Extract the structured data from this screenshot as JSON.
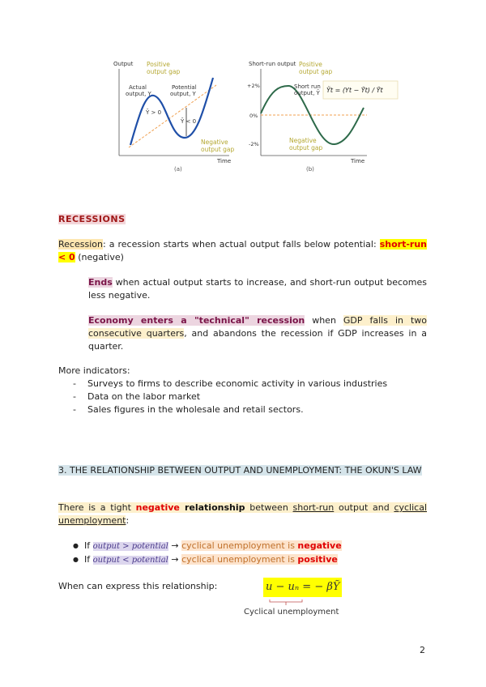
{
  "figure": {
    "left": {
      "y_axis": "Output",
      "x_axis": "Time",
      "caption": "(a)",
      "label_positive": [
        "Positive",
        "output gap"
      ],
      "label_actual": [
        "Actual",
        "output, Y"
      ],
      "label_potential": [
        "Potential",
        "output, Y"
      ],
      "label_gt": "Ỹ > 0",
      "label_lt": "Ỹ < 0",
      "label_negative": [
        "Negative",
        "output gap"
      ]
    },
    "right": {
      "y_axis": "Short-run output",
      "x_axis": "Time",
      "caption": "(b)",
      "ticks": [
        "+2%",
        "0%",
        "-2%"
      ],
      "label_positive": [
        "Positive",
        "output gap"
      ],
      "label_shortrun": [
        "Short run",
        "output, Ỹ"
      ],
      "formula": "Ỹt = (Yt − Ȳt) / Ȳt",
      "label_negative": [
        "Negative",
        "output gap"
      ]
    },
    "colors": {
      "curve_left": "#1f4fa8",
      "curve_right": "#2e6a4a",
      "dashed": "#f0a050",
      "annotation": "#b5a832"
    }
  },
  "recessions": {
    "heading": "RECESSIONS",
    "term": "Recession",
    "definition": ":   a recession starts when actual output falls below potential:",
    "condition": "short-run < 0",
    "condition_note": " (negative)",
    "ends_term": "Ends",
    "ends_text": " when actual output starts to increase, and short-run output becomes less negative.",
    "technical_term": "Economy enters a \"technical\" recession",
    "technical_when": " when ",
    "technical_gdp": "GDP falls in two consecutive quarters",
    "technical_rest": ", and abandons the recession if GDP increases in a quarter.",
    "more_indicators": "More indicators:",
    "indicators": [
      "Surveys to firms to describe economic activity in various industries",
      "Data on the labor market",
      "Sales figures in the wholesale and retail sectors."
    ]
  },
  "okun": {
    "heading": "3. THE RELATIONSHIP BETWEEN OUTPUT AND UNEMPLOYMENT: THE OKUN'S LAW",
    "intro_a": "There is a tight ",
    "intro_negative": "negative",
    "intro_relationship": " relationship",
    "intro_b": " between ",
    "intro_shortrun": "short-run",
    "intro_c": " output and ",
    "intro_cyclical": "cyclical unemployment",
    "intro_d": ":",
    "bullets": [
      {
        "if": "If ",
        "math": "output  >  potential",
        "arrow": " → ",
        "text": "cyclical unemployment is ",
        "result": "negative"
      },
      {
        "if": "If ",
        "math": "output  <  potential",
        "arrow": " → ",
        "text": "cyclical unemployment is ",
        "result": "positive"
      }
    ],
    "express_label": "When can express this relationship:",
    "equation": "u − uₙ =  − βỸ",
    "brace_label": "Cyclical unemployment"
  },
  "page_number": "2"
}
